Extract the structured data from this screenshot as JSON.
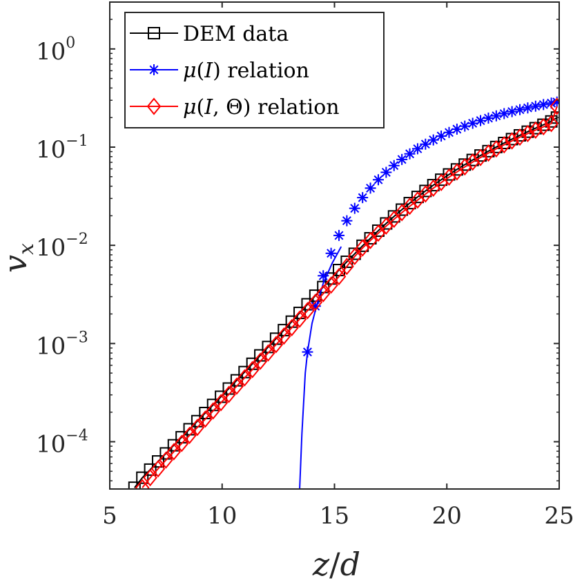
{
  "chart_data": {
    "type": "line",
    "yscale": "log",
    "xlabel": "z/d",
    "ylabel": "v_x",
    "xlabel_parts": [
      "z",
      "/",
      "d"
    ],
    "ylabel_parts": [
      "v",
      "x"
    ],
    "xlim": [
      5,
      25
    ],
    "ylim": [
      3.3e-05,
      3.0
    ],
    "x_ticks": [
      5,
      10,
      15,
      20,
      25
    ],
    "x_tick_labels": [
      "5",
      "10",
      "15",
      "20",
      "25"
    ],
    "y_ticks": [
      0.0001,
      0.001,
      0.01,
      0.1,
      1
    ],
    "y_tick_base": "10",
    "y_tick_exponents": [
      "−4",
      "−3",
      "−2",
      "−1",
      "0"
    ],
    "legend_position": "top-left",
    "series": [
      {
        "name": "DEM data",
        "legend_label": "DEM data",
        "color": "#000000",
        "marker": "square",
        "x": [
          6.1,
          6.45,
          6.8,
          7.15,
          7.5,
          7.85,
          8.2,
          8.55,
          8.9,
          9.25,
          9.6,
          9.95,
          10.3,
          10.65,
          11.0,
          11.35,
          11.7,
          12.05,
          12.4,
          12.75,
          13.1,
          13.45,
          13.8,
          14.15,
          14.5,
          14.85,
          15.2,
          15.55,
          15.9,
          16.25,
          16.6,
          16.95,
          17.3,
          17.65,
          18.0,
          18.35,
          18.7,
          19.05,
          19.4,
          19.75,
          20.1,
          20.45,
          20.8,
          21.15,
          21.5,
          21.85,
          22.2,
          22.55,
          22.9,
          23.25,
          23.6,
          23.95,
          24.3,
          24.65,
          24.9
        ],
        "y": [
          3.4e-05,
          4.3e-05,
          5.2e-05,
          6.3e-05,
          7.6e-05,
          9.2e-05,
          0.000111,
          0.000134,
          0.000162,
          0.000196,
          0.000237,
          0.000287,
          0.000348,
          0.000422,
          0.000512,
          0.000622,
          0.000757,
          0.000922,
          0.00112,
          0.00137,
          0.00167,
          0.00205,
          0.00251,
          0.00307,
          0.00376,
          0.00459,
          0.0056,
          0.0068,
          0.0082,
          0.0099,
          0.0118,
          0.0141,
          0.0167,
          0.0197,
          0.0231,
          0.0269,
          0.0311,
          0.0358,
          0.041,
          0.0466,
          0.0527,
          0.0593,
          0.0664,
          0.074,
          0.0822,
          0.091,
          0.1003,
          0.1102,
          0.1207,
          0.1318,
          0.1436,
          0.156,
          0.169,
          0.1827,
          0.2
        ]
      },
      {
        "name": "mu(I) relation",
        "legend_label": "μ(I) relation",
        "legend_italic": "μ",
        "legend_rest": "(",
        "legend_italic2": "I",
        "legend_tail": ") relation",
        "color": "#0000ff",
        "marker": "asterisk",
        "curve_x": [
          13.45,
          13.55,
          13.7,
          13.8,
          14.0,
          14.2,
          14.5,
          14.9,
          15.3
        ],
        "curve_y": [
          3.3e-05,
          0.00012,
          0.0005,
          0.00082,
          0.0016,
          0.0024,
          0.0041,
          0.0066,
          0.0097
        ],
        "x": [
          13.8,
          14.15,
          14.5,
          14.85,
          15.2,
          15.55,
          15.9,
          16.25,
          16.6,
          16.95,
          17.3,
          17.65,
          18.0,
          18.35,
          18.7,
          19.05,
          19.4,
          19.75,
          20.1,
          20.45,
          20.8,
          21.15,
          21.5,
          21.85,
          22.2,
          22.55,
          22.9,
          23.25,
          23.6,
          23.95,
          24.3,
          24.65,
          24.9
        ],
        "y": [
          0.00082,
          0.0024,
          0.0049,
          0.0083,
          0.0126,
          0.0178,
          0.0238,
          0.0306,
          0.0382,
          0.0465,
          0.0554,
          0.0649,
          0.0749,
          0.0854,
          0.0962,
          0.1072,
          0.1184,
          0.1297,
          0.141,
          0.1524,
          0.1637,
          0.175,
          0.1862,
          0.1973,
          0.2083,
          0.2192,
          0.23,
          0.2406,
          0.251,
          0.2612,
          0.2711,
          0.2808,
          0.288
        ]
      },
      {
        "name": "mu(I, Theta) relation",
        "legend_label": "μ(I, Θ) relation",
        "legend_italic": "μ",
        "legend_rest": "(",
        "legend_italic2": "I",
        "legend_tail": ", Θ) relation",
        "color": "#ff0000",
        "marker": "diamond",
        "x": [
          6.45,
          6.8,
          7.15,
          7.5,
          7.85,
          8.2,
          8.55,
          8.9,
          9.25,
          9.6,
          9.95,
          10.3,
          10.65,
          11.0,
          11.35,
          11.7,
          12.05,
          12.4,
          12.75,
          13.1,
          13.45,
          13.8,
          14.15,
          14.5,
          14.85,
          15.2,
          15.55,
          15.9,
          16.25,
          16.6,
          16.95,
          17.3,
          17.65,
          18.0,
          18.35,
          18.7,
          19.05,
          19.4,
          19.75,
          20.1,
          20.45,
          20.8,
          21.15,
          21.5,
          21.85,
          22.2,
          22.55,
          22.9,
          23.25,
          23.6,
          23.95,
          24.3,
          24.65,
          24.9
        ],
        "y": [
          3.4e-05,
          4.3e-05,
          5.3e-05,
          6.5e-05,
          7.9e-05,
          9.6e-05,
          0.000116,
          0.00014,
          0.00017,
          0.000206,
          0.00025,
          0.000303,
          0.000368,
          0.000447,
          0.000543,
          0.00066,
          0.000802,
          0.000975,
          0.00119,
          0.00145,
          0.00177,
          0.00216,
          0.00263,
          0.00322,
          0.00393,
          0.0048,
          0.0061,
          0.0077,
          0.0094,
          0.0112,
          0.0133,
          0.0157,
          0.0184,
          0.0215,
          0.025,
          0.0289,
          0.0333,
          0.0382,
          0.0436,
          0.0495,
          0.0559,
          0.0629,
          0.0704,
          0.0784,
          0.087,
          0.096,
          0.1056,
          0.1157,
          0.1263,
          0.1374,
          0.149,
          0.1611,
          0.1737,
          0.26
        ]
      }
    ]
  }
}
